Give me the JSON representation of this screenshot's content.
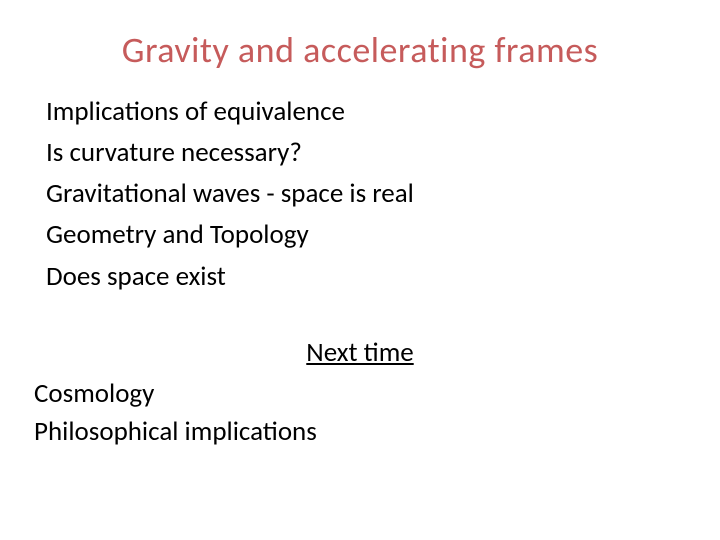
{
  "slide": {
    "title": "Gravity and accelerating frames",
    "title_color": "#c65b5b",
    "body_color": "#000000",
    "background_color": "#ffffff",
    "topics": [
      "Implications of equivalence",
      "Is curvature necessary?",
      "Gravitational waves - space is real",
      "Geometry and Topology",
      "Does space exist"
    ],
    "next_heading": "Next time",
    "next_topics": [
      "Cosmology",
      "Philosophical implications"
    ],
    "title_fontsize": 36,
    "body_fontsize": 27
  }
}
